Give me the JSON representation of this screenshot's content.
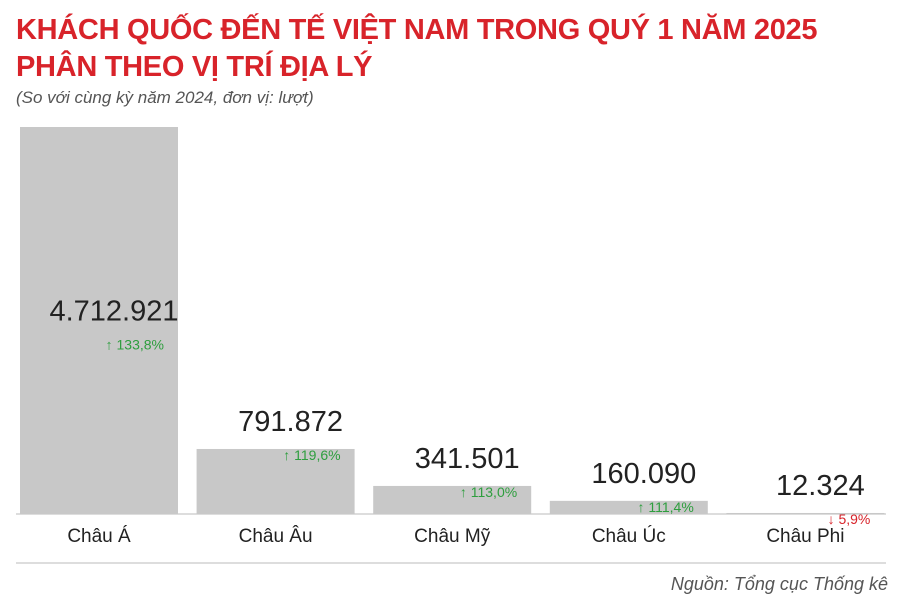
{
  "title_line1": "KHÁCH QUỐC ĐẾN TẾ VIỆT NAM TRONG QUÝ 1 NĂM 2025",
  "title_line2": "PHÂN THEO VỊ TRÍ ĐỊA LÝ",
  "subtitle": "(So với cùng kỳ năm 2024, đơn vị: lượt)",
  "source": "Nguồn: Tổng cục Thống kê",
  "colors": {
    "bar": "#c8c8c8",
    "up": "#2e9e3e",
    "down": "#d8232a",
    "text": "#222222",
    "axis": "#bbbbbb"
  },
  "chart_data": {
    "type": "bar",
    "categories": [
      "Châu Á",
      "Châu Âu",
      "Châu Mỹ",
      "Châu Úc",
      "Châu Phi"
    ],
    "values": [
      4712921,
      791872,
      341501,
      160090,
      12324
    ],
    "value_labels": [
      "4.712.921",
      "791.872",
      "341.501",
      "160.090",
      "12.324"
    ],
    "change_labels": [
      "133,8%",
      "119,6%",
      "113,0%",
      "111,4%",
      "5,9%"
    ],
    "change_direction": [
      "up",
      "up",
      "up",
      "up",
      "down"
    ],
    "ylim": [
      0,
      4712921
    ],
    "grid": false,
    "legend": "none"
  }
}
